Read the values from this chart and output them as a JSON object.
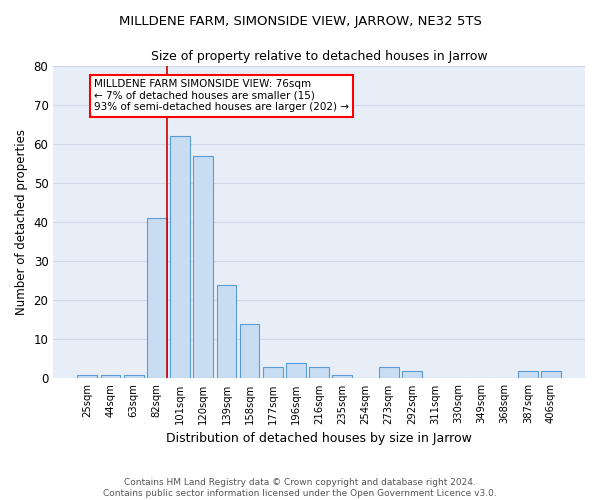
{
  "title1": "MILLDENE FARM, SIMONSIDE VIEW, JARROW, NE32 5TS",
  "title2": "Size of property relative to detached houses in Jarrow",
  "xlabel": "Distribution of detached houses by size in Jarrow",
  "ylabel": "Number of detached properties",
  "footer": "Contains HM Land Registry data © Crown copyright and database right 2024.\nContains public sector information licensed under the Open Government Licence v3.0.",
  "categories": [
    "25sqm",
    "44sqm",
    "63sqm",
    "82sqm",
    "101sqm",
    "120sqm",
    "139sqm",
    "158sqm",
    "177sqm",
    "196sqm",
    "216sqm",
    "235sqm",
    "254sqm",
    "273sqm",
    "292sqm",
    "311sqm",
    "330sqm",
    "349sqm",
    "368sqm",
    "387sqm",
    "406sqm"
  ],
  "values": [
    1,
    1,
    1,
    41,
    62,
    57,
    24,
    14,
    3,
    4,
    3,
    1,
    0,
    3,
    2,
    0,
    0,
    0,
    0,
    2,
    2
  ],
  "bar_color": "#c9ddf2",
  "bar_edge_color": "#5b9bd5",
  "grid_color": "#d0d8e8",
  "background_color": "#e8eef8",
  "vline_x_idx": 3,
  "vline_color": "#cc0000",
  "annotation_box_text": "MILLDENE FARM SIMONSIDE VIEW: 76sqm\n← 7% of detached houses are smaller (15)\n93% of semi-detached houses are larger (202) →",
  "ylim": [
    0,
    80
  ],
  "yticks": [
    0,
    10,
    20,
    30,
    40,
    50,
    60,
    70,
    80
  ]
}
